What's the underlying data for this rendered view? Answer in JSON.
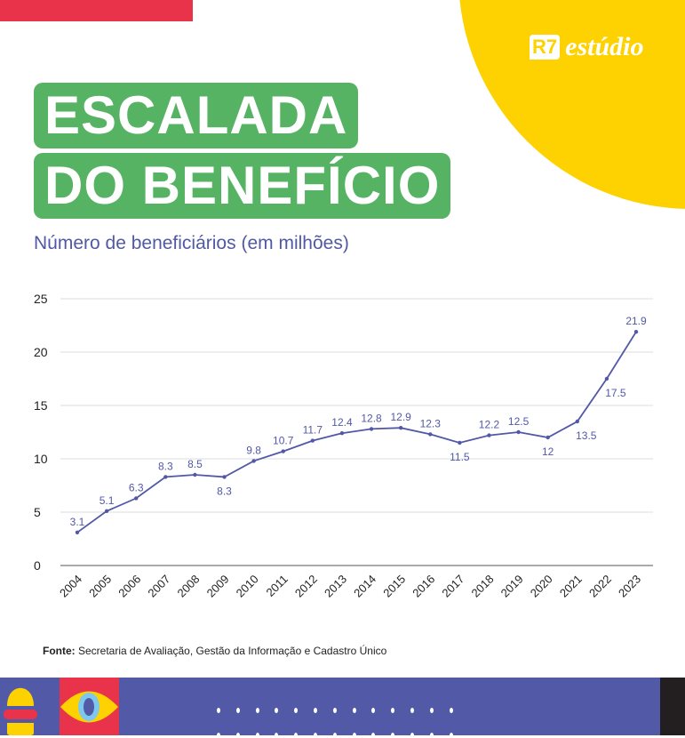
{
  "brand": {
    "logo_text": "R7 estúdio",
    "logo_mark": "R7",
    "logo_word": "estúdio"
  },
  "header": {
    "title_line1": "ESCALADA",
    "title_line2": "DO BENEFÍCIO",
    "subtitle": "Número de beneficiários (em milhões)"
  },
  "source": {
    "label": "Fonte:",
    "text": " Secretaria de Avaliação, Gestão da Informação e Cadastro Único"
  },
  "colors": {
    "accent_green": "#56b364",
    "line": "#5158a6",
    "yellow": "#fed200",
    "red": "#e8334a"
  },
  "chart_data": {
    "type": "line",
    "categories": [
      "2004",
      "2005",
      "2006",
      "2007",
      "2008",
      "2009",
      "2010",
      "2011",
      "2012",
      "2013",
      "2014",
      "2015",
      "2016",
      "2017",
      "2018",
      "2019",
      "2020",
      "2021",
      "2022",
      "2023"
    ],
    "values": [
      3.1,
      5.1,
      6.3,
      8.3,
      8.5,
      8.3,
      9.8,
      10.7,
      11.7,
      12.4,
      12.8,
      12.9,
      12.3,
      11.5,
      12.2,
      12.5,
      12,
      13.5,
      17.5,
      21.9
    ],
    "labels": [
      "3.1",
      "5.1",
      "6.3",
      "8.3",
      "8.5",
      "8.3",
      "9.8",
      "10.7",
      "11.7",
      "12.4",
      "12.8",
      "12.9",
      "12.3",
      "11.5",
      "12.2",
      "12.5",
      "12",
      "13.5",
      "17.5",
      "21.9"
    ],
    "yticks": [
      0,
      5,
      10,
      15,
      20,
      25
    ],
    "ylim": [
      0,
      25
    ],
    "grid": true
  }
}
